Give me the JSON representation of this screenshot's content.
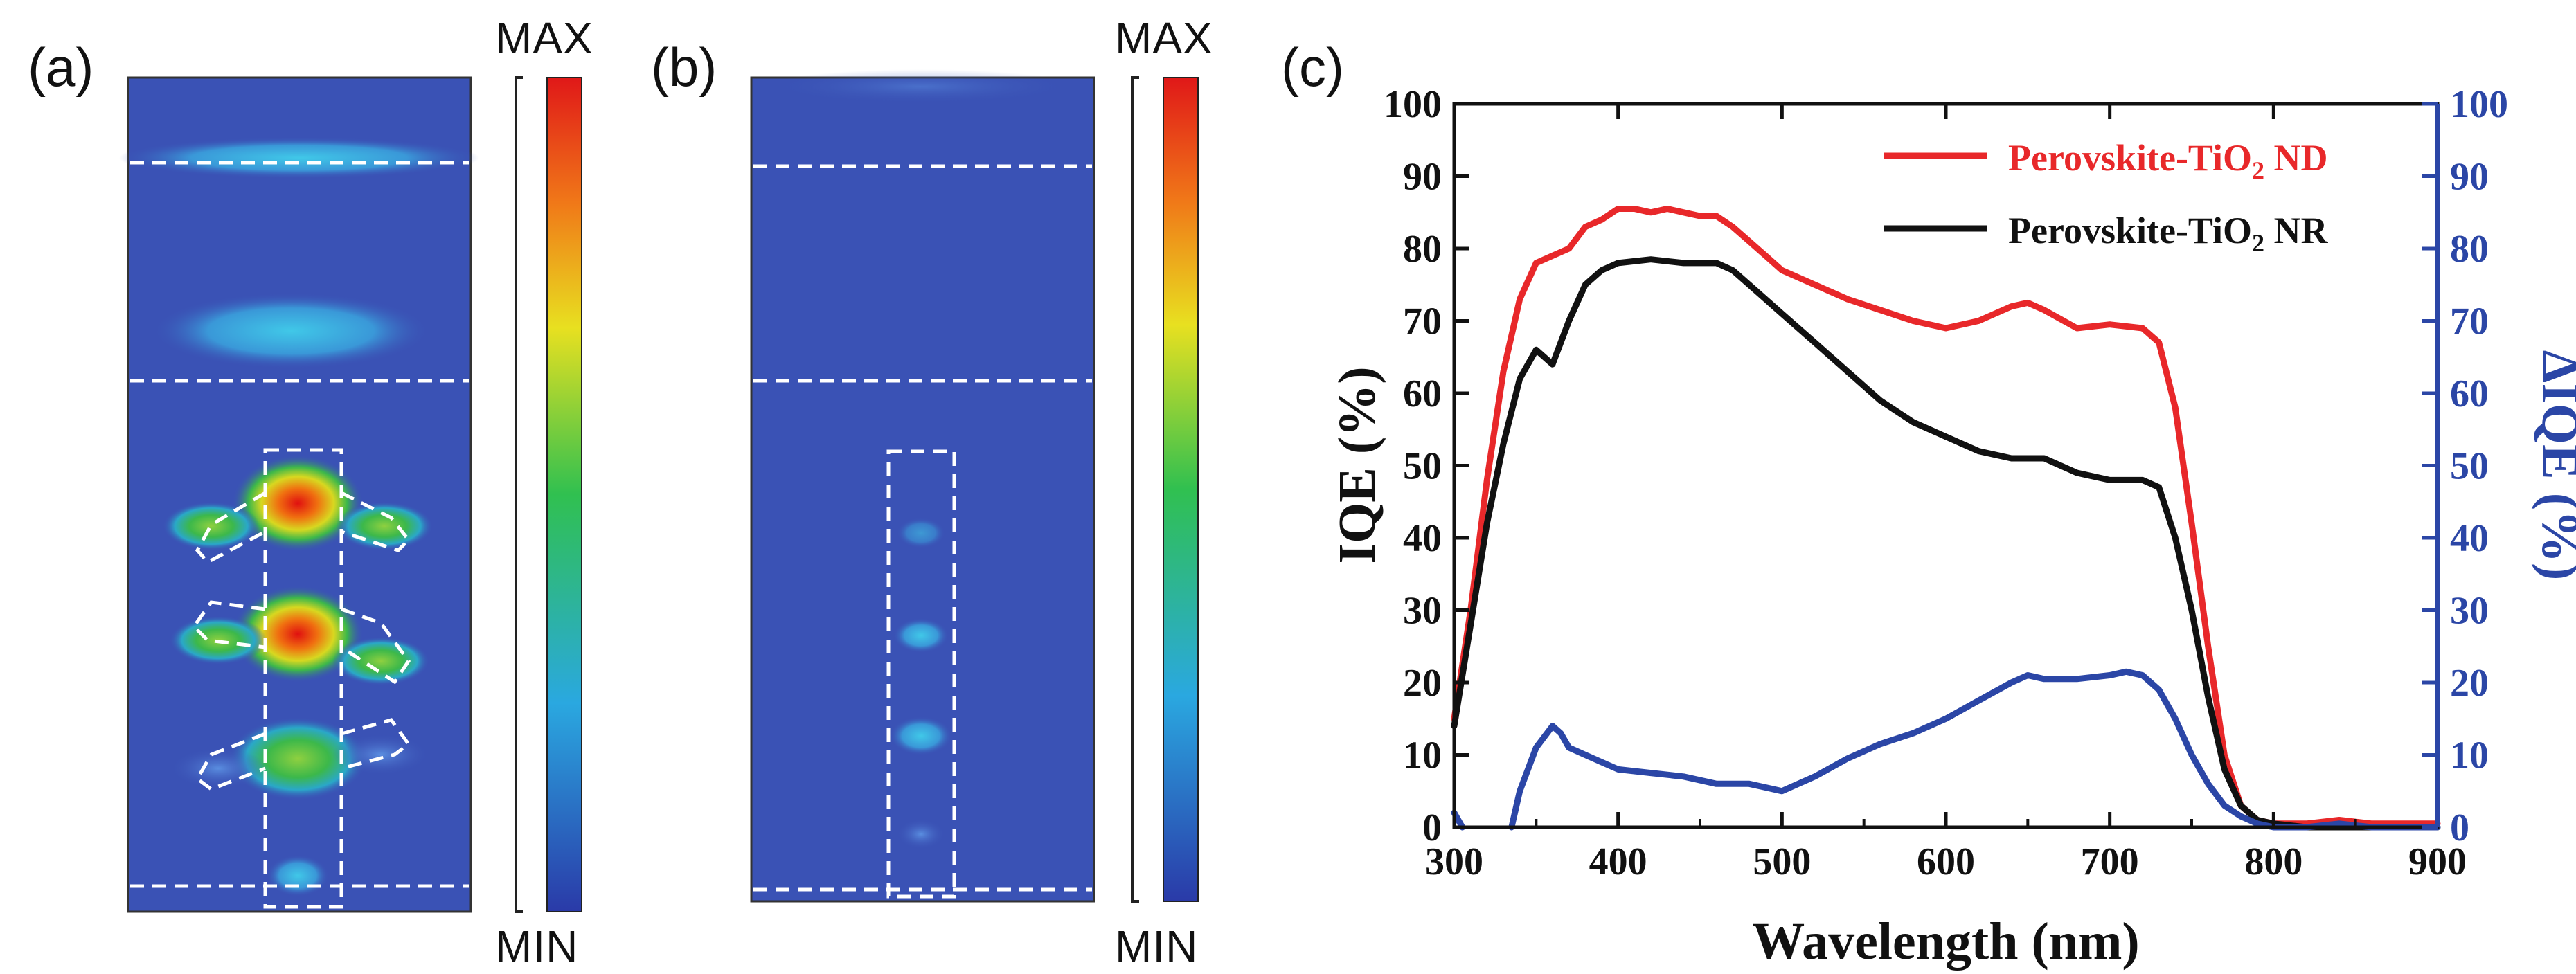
{
  "panels": {
    "a": {
      "label": "(a)",
      "cb_max": "MAX",
      "cb_min": "MIN"
    },
    "b": {
      "label": "(b)",
      "cb_max": "MAX",
      "cb_min": "MIN"
    },
    "c": {
      "label": "(c)"
    }
  },
  "colors": {
    "field_bg": "#3a52b5",
    "red_series": "#e8282a",
    "black_series": "#111111",
    "blue_series": "#2b46a6",
    "right_axis": "#2b46a6"
  },
  "chart_data": {
    "type": "line",
    "x_label": "Wavelength (nm)",
    "y_label_left": "IQE (%)",
    "y_label_right": "ΔIQE (%)",
    "xlim": [
      300,
      900
    ],
    "ylim_left": [
      0,
      100
    ],
    "ylim_right": [
      0,
      100
    ],
    "x_ticks": [
      "300",
      "400",
      "500",
      "600",
      "700",
      "800",
      "900"
    ],
    "y_ticks_left": [
      "0",
      "10",
      "20",
      "30",
      "40",
      "50",
      "60",
      "70",
      "80",
      "90",
      "100"
    ],
    "y_ticks_right": [
      "0",
      "10",
      "20",
      "30",
      "40",
      "50",
      "60",
      "70",
      "80",
      "90",
      "100"
    ],
    "legend": {
      "position": "top-right",
      "entries": [
        {
          "prefix": "Perovskite-TiO",
          "sub": "2",
          "suffix": " ND",
          "color": "#e8282a"
        },
        {
          "prefix": "Perovskite-TiO",
          "sub": "2",
          "suffix": " NR",
          "color": "#111111"
        }
      ]
    },
    "series": [
      {
        "name": "Perovskite-TiO2 ND",
        "axis": "left",
        "color": "#e8282a",
        "x": [
          300,
          310,
          320,
          330,
          340,
          350,
          360,
          370,
          380,
          390,
          400,
          410,
          420,
          430,
          440,
          450,
          460,
          470,
          480,
          490,
          500,
          520,
          540,
          560,
          580,
          600,
          620,
          640,
          650,
          660,
          680,
          700,
          720,
          730,
          740,
          750,
          760,
          770,
          780,
          790,
          800,
          820,
          840,
          860,
          880,
          900
        ],
        "y": [
          15,
          30,
          48,
          63,
          73,
          78,
          79,
          80,
          83,
          84,
          85.5,
          85.5,
          85,
          85.5,
          85,
          84.5,
          84.5,
          83,
          81,
          79,
          77,
          75,
          73,
          71.5,
          70,
          69,
          70,
          72,
          72.5,
          71.5,
          69,
          69.5,
          69,
          67,
          58,
          42,
          25,
          10,
          3,
          1,
          0.5,
          0.5,
          1,
          0.5,
          0.5,
          0.5
        ]
      },
      {
        "name": "Perovskite-TiO2 NR",
        "axis": "left",
        "color": "#111111",
        "x": [
          300,
          310,
          320,
          330,
          340,
          350,
          360,
          370,
          380,
          390,
          400,
          420,
          440,
          460,
          470,
          480,
          500,
          520,
          540,
          560,
          580,
          600,
          620,
          640,
          660,
          680,
          700,
          720,
          730,
          740,
          750,
          760,
          770,
          780,
          790,
          800,
          820,
          900
        ],
        "y": [
          14,
          28,
          42,
          53,
          62,
          66,
          64,
          70,
          75,
          77,
          78,
          78.5,
          78,
          78,
          77,
          75,
          71,
          67,
          63,
          59,
          56,
          54,
          52,
          51,
          51,
          49,
          48,
          48,
          47,
          40,
          30,
          18,
          8,
          3,
          1,
          0.5,
          0,
          0
        ]
      },
      {
        "name": "ΔIQE",
        "axis": "right",
        "color": "#2b46a6",
        "x": [
          300,
          305,
          310,
          335,
          340,
          350,
          360,
          365,
          370,
          380,
          390,
          400,
          420,
          440,
          460,
          480,
          500,
          510,
          520,
          540,
          560,
          580,
          600,
          620,
          640,
          650,
          660,
          680,
          700,
          710,
          720,
          730,
          740,
          750,
          760,
          770,
          780,
          790,
          800,
          820,
          840,
          860,
          900
        ],
        "y": [
          2,
          0,
          null,
          0,
          5,
          11,
          14,
          13,
          11,
          10,
          9,
          8,
          7.5,
          7,
          6,
          6,
          5,
          6,
          7,
          9.5,
          11.5,
          13,
          15,
          17.5,
          20,
          21,
          20.5,
          20.5,
          21,
          21.5,
          21,
          19,
          15,
          10,
          6,
          3,
          1.5,
          0.5,
          0,
          0,
          0.5,
          0,
          0
        ]
      }
    ]
  }
}
